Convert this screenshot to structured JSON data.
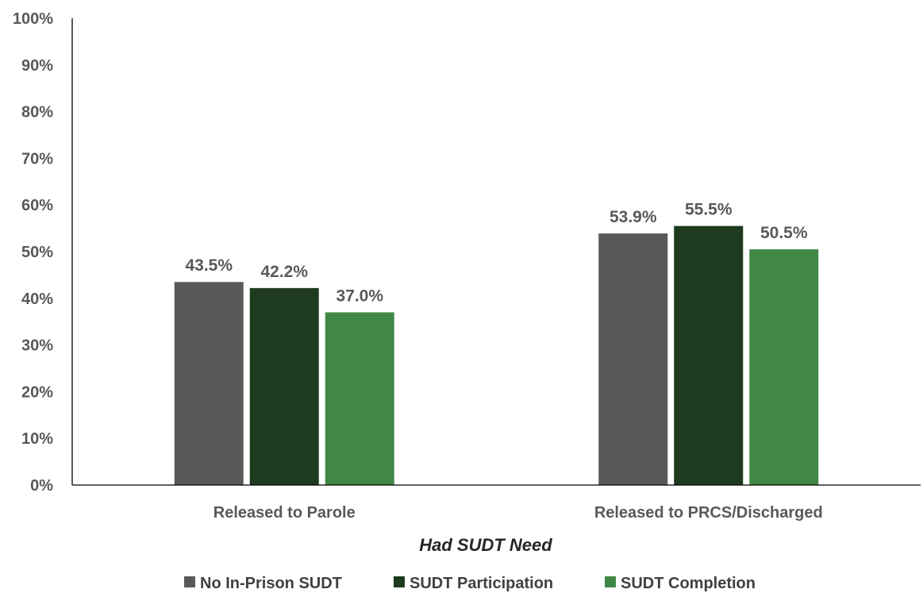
{
  "chart_data": {
    "type": "bar",
    "title": "",
    "xlabel": "Had SUDT Need",
    "ylabel": "",
    "ylim": [
      0,
      100
    ],
    "y_ticks": [
      "0%",
      "10%",
      "20%",
      "30%",
      "40%",
      "50%",
      "60%",
      "70%",
      "80%",
      "90%",
      "100%"
    ],
    "grid": false,
    "legend_position": "bottom",
    "categories": [
      "Released to Parole",
      "Released to PRCS/Discharged"
    ],
    "series": [
      {
        "name": "No In-Prison SUDT",
        "color": "#595959",
        "values": [
          43.5,
          53.9
        ],
        "labels": [
          "43.5%",
          "53.9%"
        ]
      },
      {
        "name": "SUDT Participation",
        "color": "#1e3a1f",
        "values": [
          42.2,
          55.5
        ],
        "labels": [
          "42.2%",
          "55.5%"
        ]
      },
      {
        "name": "SUDT Completion",
        "color": "#418846",
        "values": [
          37.0,
          50.5
        ],
        "labels": [
          "37.0%",
          "50.5%"
        ]
      }
    ]
  }
}
